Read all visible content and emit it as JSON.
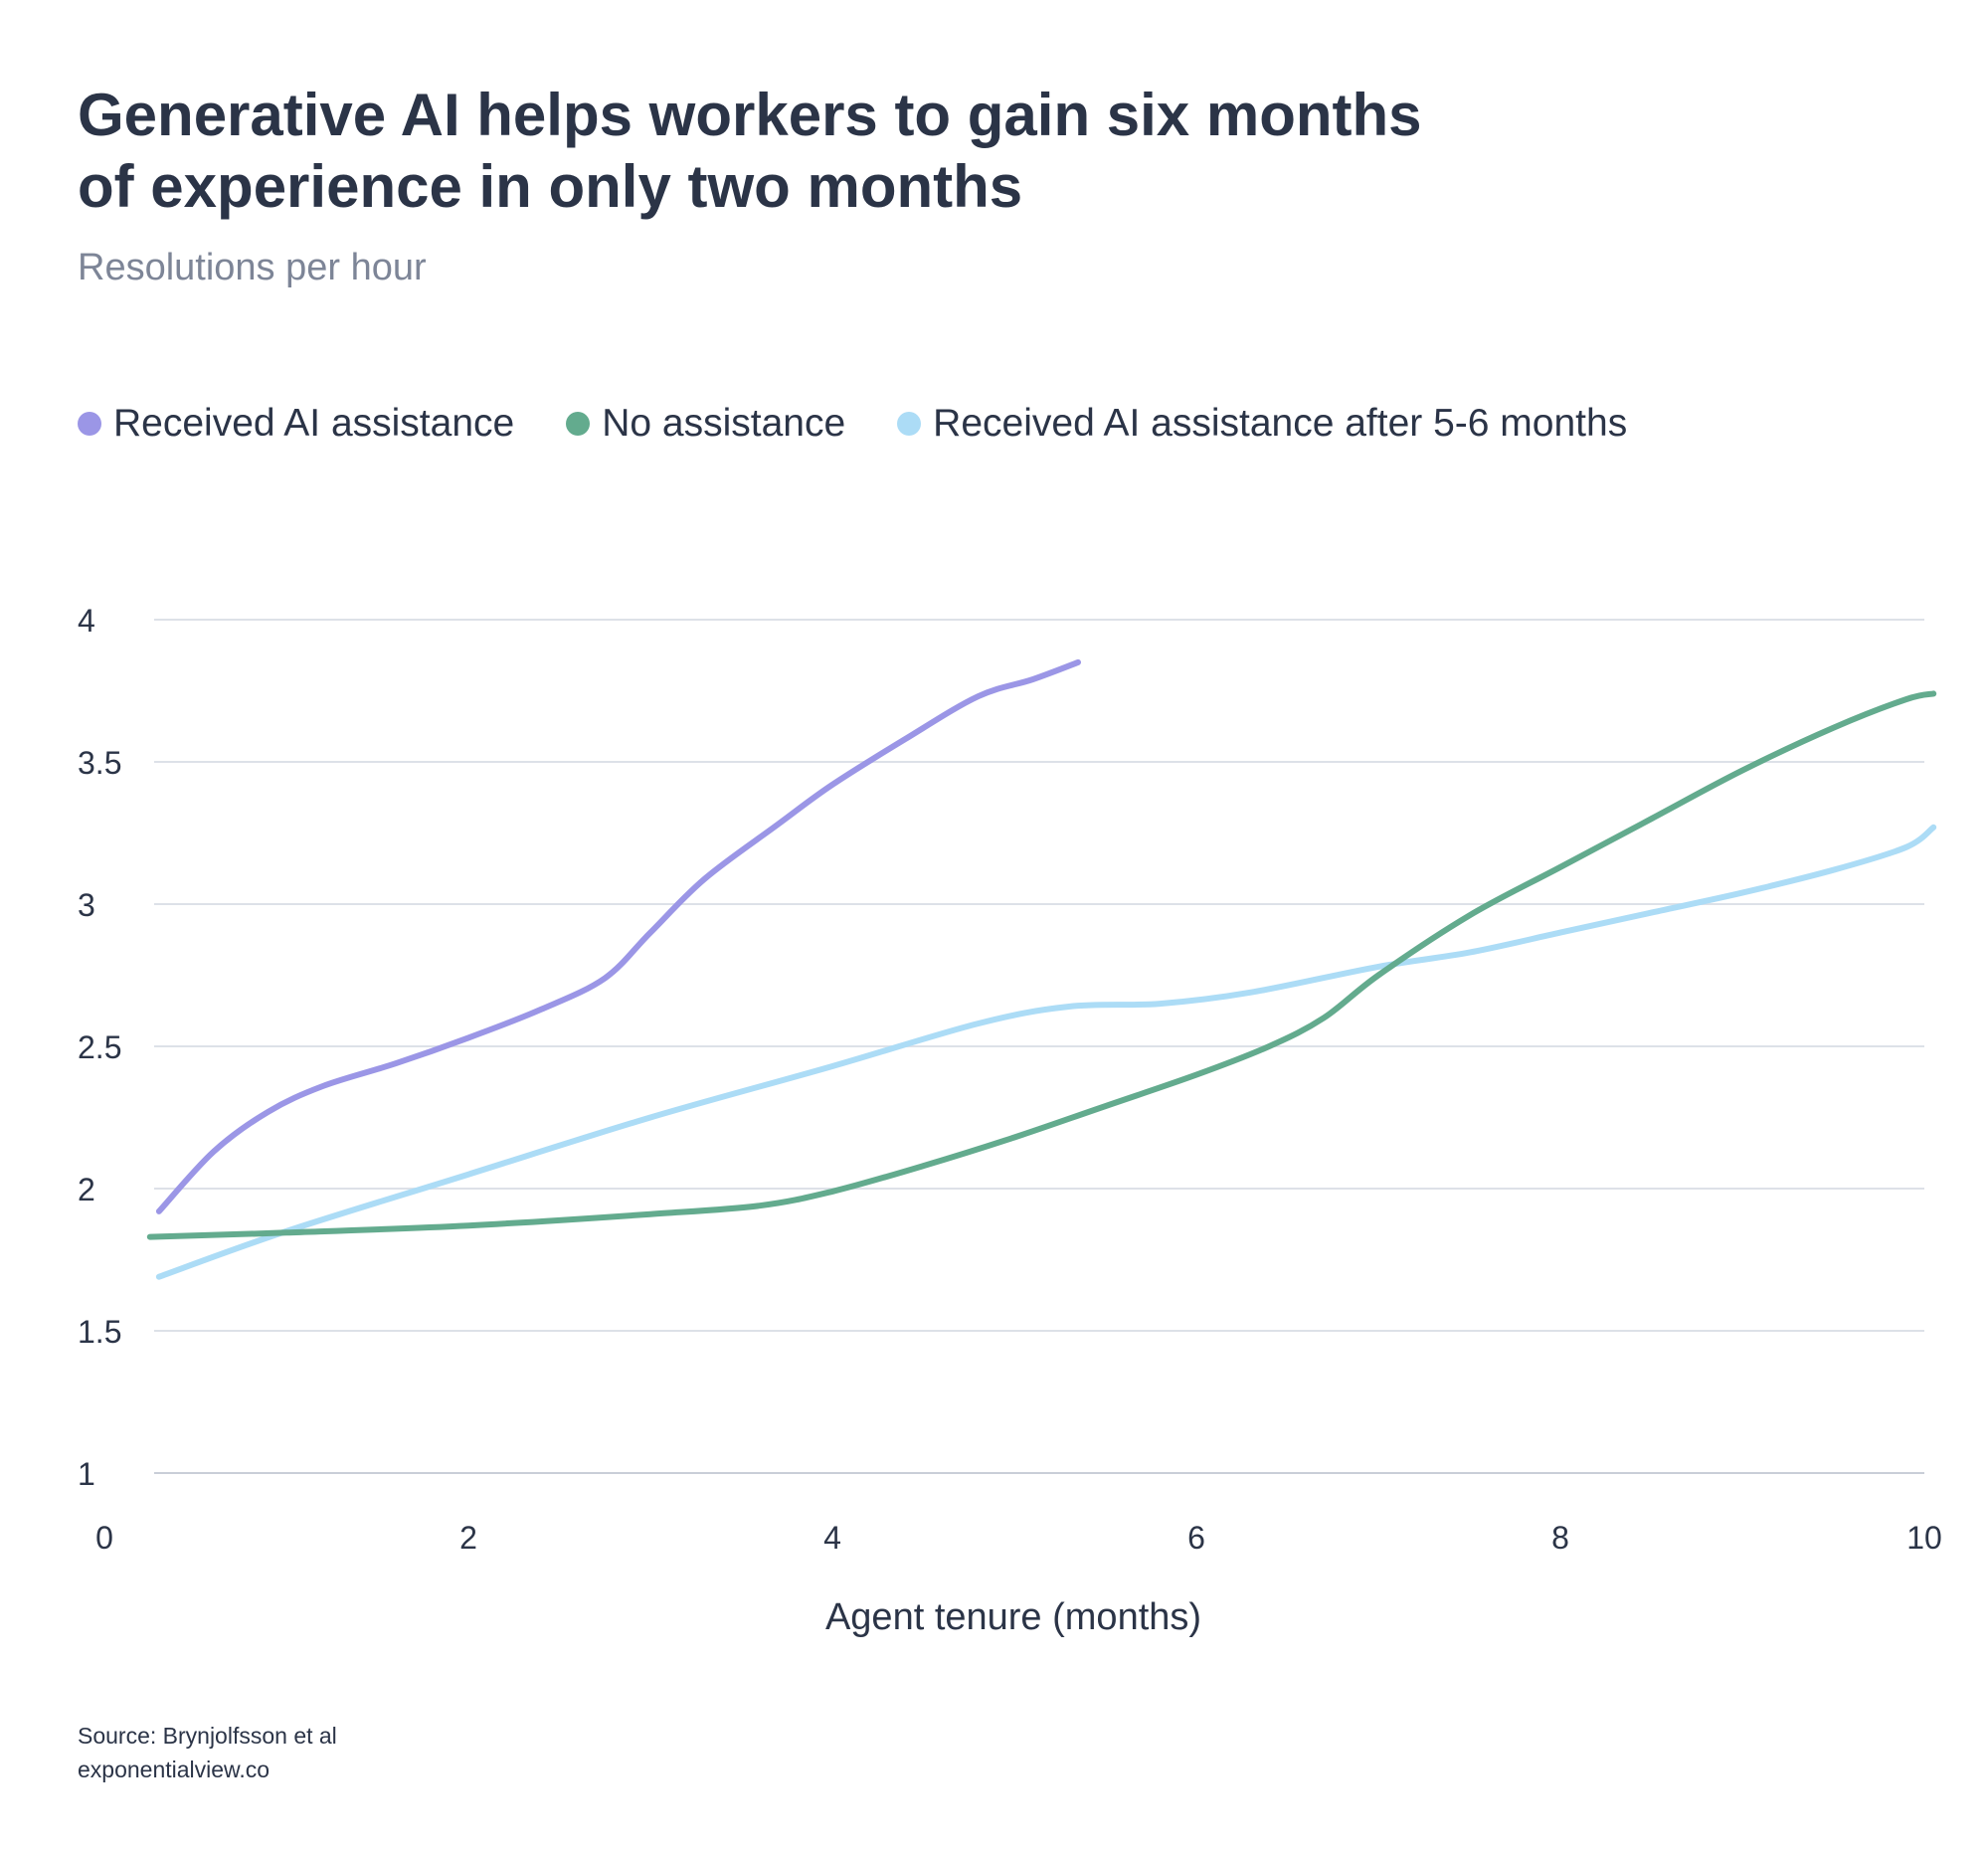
{
  "header": {
    "title": "Generative AI helps workers to gain six months of experience in only two months",
    "subtitle": "Resolutions per hour"
  },
  "footer": {
    "source": "Source: Brynjolfsson et al",
    "site": "exponentialview.co"
  },
  "chart_data": {
    "type": "line",
    "title": "Generative AI helps workers to gain six months of experience in only two months",
    "subtitle": "Resolutions per hour",
    "xlabel": "Agent tenure (months)",
    "ylabel": "",
    "xlim": [
      0,
      10
    ],
    "ylim": [
      1,
      4
    ],
    "xticks": [
      0,
      2,
      4,
      6,
      8,
      10
    ],
    "yticks": [
      1,
      1.5,
      2,
      2.5,
      3,
      3.5,
      4
    ],
    "grid": "horizontal",
    "legend_position": "top-left",
    "series": [
      {
        "name": "Received AI assistance",
        "color": "#9b96e6",
        "points": [
          [
            0.3,
            1.92
          ],
          [
            0.6,
            2.13
          ],
          [
            0.9,
            2.27
          ],
          [
            1.2,
            2.36
          ],
          [
            1.6,
            2.44
          ],
          [
            2.0,
            2.53
          ],
          [
            2.4,
            2.63
          ],
          [
            2.75,
            2.74
          ],
          [
            3.0,
            2.9
          ],
          [
            3.3,
            3.09
          ],
          [
            3.7,
            3.28
          ],
          [
            4.0,
            3.42
          ],
          [
            4.4,
            3.58
          ],
          [
            4.8,
            3.73
          ],
          [
            5.1,
            3.79
          ],
          [
            5.35,
            3.85
          ]
        ]
      },
      {
        "name": "No assistance",
        "color": "#63ab8e",
        "points": [
          [
            0.25,
            1.83
          ],
          [
            1.0,
            1.845
          ],
          [
            2.0,
            1.87
          ],
          [
            3.0,
            1.91
          ],
          [
            3.6,
            1.94
          ],
          [
            4.0,
            1.99
          ],
          [
            4.5,
            2.08
          ],
          [
            5.0,
            2.18
          ],
          [
            5.5,
            2.29
          ],
          [
            6.0,
            2.4
          ],
          [
            6.4,
            2.5
          ],
          [
            6.7,
            2.6
          ],
          [
            7.0,
            2.75
          ],
          [
            7.5,
            2.96
          ],
          [
            8.0,
            3.13
          ],
          [
            8.5,
            3.3
          ],
          [
            9.0,
            3.47
          ],
          [
            9.5,
            3.62
          ],
          [
            9.9,
            3.72
          ],
          [
            10.05,
            3.74
          ]
        ]
      },
      {
        "name": "Received AI assistance after 5-6 months",
        "color": "#acdcf6",
        "points": [
          [
            0.3,
            1.69
          ],
          [
            1.0,
            1.85
          ],
          [
            2.0,
            2.05
          ],
          [
            3.0,
            2.25
          ],
          [
            4.0,
            2.43
          ],
          [
            4.8,
            2.58
          ],
          [
            5.3,
            2.64
          ],
          [
            5.8,
            2.65
          ],
          [
            6.3,
            2.69
          ],
          [
            7.0,
            2.78
          ],
          [
            7.5,
            2.83
          ],
          [
            8.0,
            2.9
          ],
          [
            8.5,
            2.97
          ],
          [
            9.0,
            3.04
          ],
          [
            9.5,
            3.12
          ],
          [
            9.9,
            3.2
          ],
          [
            10.05,
            3.27
          ]
        ]
      }
    ]
  }
}
